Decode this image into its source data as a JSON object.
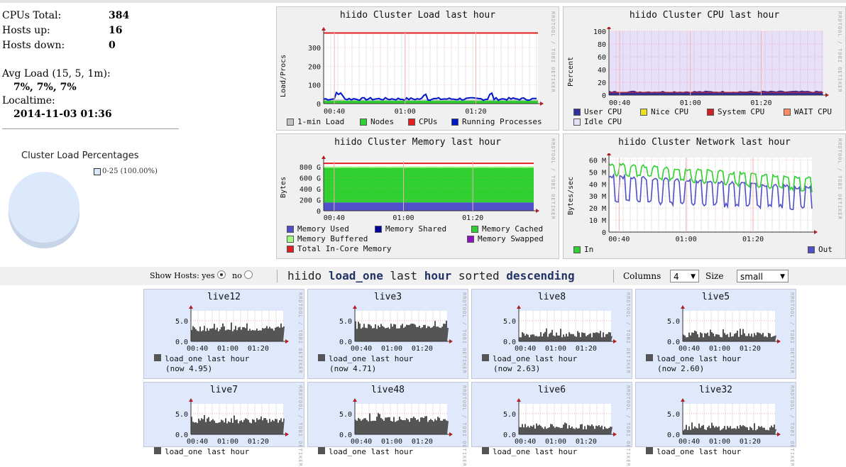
{
  "summary": {
    "cpus_label": "CPUs Total:",
    "cpus_value": "384",
    "hosts_up_label": "Hosts up:",
    "hosts_up_value": "16",
    "hosts_down_label": "Hosts down:",
    "hosts_down_value": "0",
    "avg_load_label": "Avg Load (15, 5, 1m):",
    "avg_load_value": "7%, 7%, 7%",
    "localtime_label": "Localtime:",
    "localtime_value": "2014-11-03 01:36"
  },
  "pie": {
    "title": "Cluster Load Percentages",
    "legend": "0-25 (100.00%)",
    "color": "#dce8fb"
  },
  "rrd_credit": "RRDTOOL / TOBI OETIKER",
  "time_ticks": [
    "00:40",
    "01:00",
    "01:20"
  ],
  "panels": {
    "load": {
      "title": "hiido Cluster Load last hour",
      "ylabel": "Load/Procs",
      "yticks": [
        "300",
        "200",
        "100",
        "0"
      ],
      "legend": [
        {
          "label": "1-min Load",
          "color": "#c0c0c0"
        },
        {
          "label": "Nodes",
          "color": "#2fd02f"
        },
        {
          "label": "CPUs",
          "color": "#e02020"
        },
        {
          "label": "Running Processes",
          "color": "#0018c8"
        }
      ]
    },
    "cpu": {
      "title": "hiido Cluster CPU last hour",
      "ylabel": "Percent",
      "yticks": [
        "100",
        "80",
        "60",
        "40",
        "20",
        "0"
      ],
      "legend": [
        {
          "label": "User CPU",
          "color": "#3030a0"
        },
        {
          "label": "Nice CPU",
          "color": "#e8e020"
        },
        {
          "label": "System CPU",
          "color": "#d02020"
        },
        {
          "label": "WAIT CPU",
          "color": "#ff8a60"
        },
        {
          "label": "Idle CPU",
          "color": "#e8e0f8"
        }
      ]
    },
    "memory": {
      "title": "hiido Cluster Memory last hour",
      "ylabel": "Bytes",
      "yticks": [
        "800 G",
        "600 G",
        "400 G",
        "200 G",
        "0"
      ],
      "legend": [
        {
          "label": "Memory Used",
          "color": "#5050c8"
        },
        {
          "label": "Memory Shared",
          "color": "#0000a0"
        },
        {
          "label": "Memory Cached",
          "color": "#2fd02f"
        },
        {
          "label": "Memory Buffered",
          "color": "#a0ff80"
        },
        {
          "label": "Memory Swapped",
          "color": "#9010c0"
        },
        {
          "label": "Total In-Core Memory",
          "color": "#e02020"
        }
      ]
    },
    "network": {
      "title": "hiido Cluster Network last hour",
      "ylabel": "Bytes/sec",
      "yticks": [
        "60 M",
        "50 M",
        "40 M",
        "30 M",
        "20 M",
        "10 M",
        "0"
      ],
      "legend": [
        {
          "label": "In",
          "color": "#2fd02f"
        },
        {
          "label": "Out",
          "color": "#5050c8"
        }
      ]
    }
  },
  "toolbar": {
    "show_hosts_label": "Show Hosts:",
    "yes_label": "yes",
    "no_label": "no",
    "heading_parts": [
      "hiido",
      "load_one",
      "last",
      "hour",
      "sorted",
      "descending"
    ],
    "columns_label": "Columns",
    "columns_value": "4",
    "size_label": "Size",
    "size_value": "small"
  },
  "host_metric": "load_one last hour",
  "host_yticks": [
    "5.0",
    "0.0"
  ],
  "hosts": [
    {
      "name": "live12",
      "now": "(now 4.95)",
      "level": 0.42
    },
    {
      "name": "live3",
      "now": "(now 4.71)",
      "level": 0.5
    },
    {
      "name": "live8",
      "now": "(now 2.63)",
      "level": 0.22
    },
    {
      "name": "live5",
      "now": "(now 2.60)",
      "level": 0.22
    },
    {
      "name": "live7",
      "now": "",
      "level": 0.45
    },
    {
      "name": "live48",
      "now": "",
      "level": 0.5
    },
    {
      "name": "live6",
      "now": "",
      "level": 0.25
    },
    {
      "name": "live32",
      "now": "",
      "level": 0.22
    }
  ]
}
